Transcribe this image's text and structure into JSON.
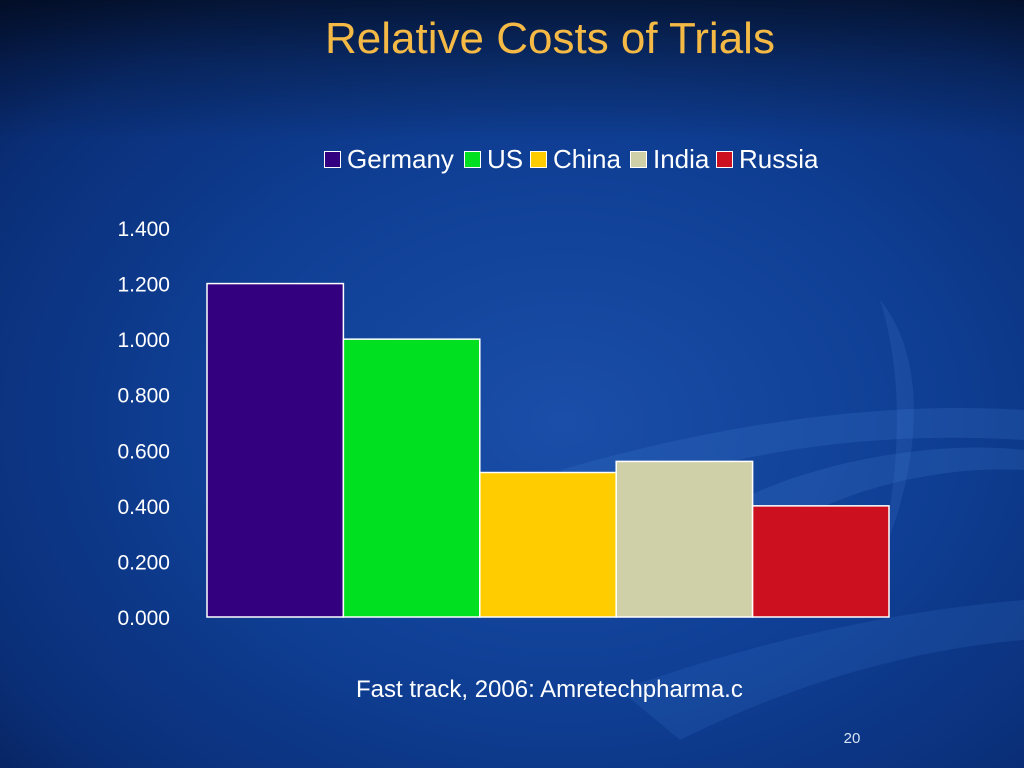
{
  "slide": {
    "title": "Relative Costs of Trials",
    "source_note": "Fast track, 2006: Amretechpharma.c",
    "page_number": "20"
  },
  "colors": {
    "background": "#0f3f95",
    "title": "#f5b945"
  },
  "chart_data": {
    "type": "bar",
    "categories": [
      "Germany",
      "US",
      "China",
      "India",
      "Russia"
    ],
    "values": [
      1.2,
      1.0,
      0.52,
      0.56,
      0.4
    ],
    "colors": [
      "#330080",
      "#00e020",
      "#ffcc00",
      "#d0d0a8",
      "#cc1020"
    ],
    "legend_labels": [
      "Germany",
      "US",
      "China",
      "India",
      "Russia"
    ],
    "legend_position": "top",
    "yticks": [
      "0.000",
      "0.200",
      "0.400",
      "0.600",
      "0.800",
      "1.000",
      "1.200",
      "1.400"
    ],
    "ylim": [
      0,
      1.4
    ],
    "grid": false,
    "title": "",
    "xlabel": "",
    "ylabel": ""
  }
}
